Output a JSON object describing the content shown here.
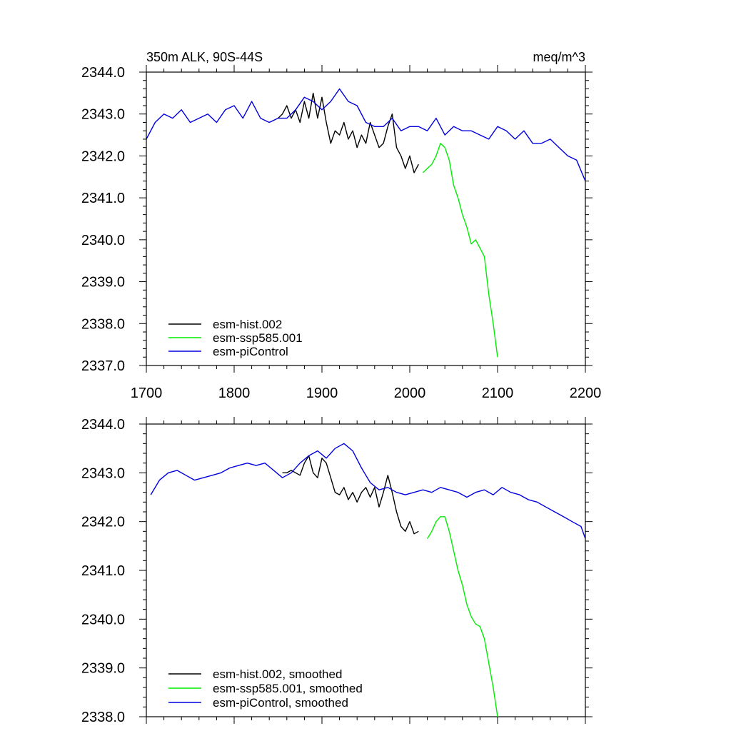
{
  "chart_data": [
    {
      "type": "line",
      "title_left": "350m ALK, 90S-44S",
      "title_right": "meq/m^3",
      "xlim": [
        1700,
        2200
      ],
      "ylim": [
        2337.0,
        2344.0
      ],
      "x_ticks": [
        1700,
        1800,
        1900,
        2000,
        2100,
        2200
      ],
      "x_tick_labels": [
        "1700",
        "1800",
        "1900",
        "2000",
        "2100",
        "2200"
      ],
      "y_ticks": [
        2337.0,
        2338.0,
        2339.0,
        2340.0,
        2341.0,
        2342.0,
        2343.0,
        2344.0
      ],
      "y_tick_labels": [
        "2337.0",
        "2338.0",
        "2339.0",
        "2340.0",
        "2341.0",
        "2342.0",
        "2343.0",
        "2344.0"
      ],
      "legend_position": "bottom-left",
      "series": [
        {
          "name": "esm-hist.002",
          "color": "#000000",
          "x": [
            1850,
            1855,
            1860,
            1865,
            1870,
            1875,
            1880,
            1885,
            1890,
            1895,
            1900,
            1905,
            1910,
            1915,
            1920,
            1925,
            1930,
            1935,
            1940,
            1945,
            1950,
            1955,
            1960,
            1965,
            1970,
            1975,
            1980,
            1985,
            1990,
            1995,
            2000,
            2005,
            2010
          ],
          "y": [
            2342.9,
            2343.0,
            2343.2,
            2342.9,
            2343.1,
            2342.8,
            2343.3,
            2342.9,
            2343.5,
            2342.9,
            2343.4,
            2342.8,
            2342.3,
            2342.6,
            2342.5,
            2342.8,
            2342.4,
            2342.6,
            2342.2,
            2342.5,
            2342.3,
            2342.8,
            2342.5,
            2342.2,
            2342.3,
            2342.7,
            2343.0,
            2342.2,
            2342.0,
            2341.7,
            2342.0,
            2341.6,
            2341.8
          ]
        },
        {
          "name": "esm-ssp585.001",
          "color": "#00ee00",
          "x": [
            2015,
            2020,
            2025,
            2030,
            2035,
            2040,
            2045,
            2050,
            2055,
            2060,
            2065,
            2070,
            2075,
            2080,
            2085,
            2090,
            2095,
            2100
          ],
          "y": [
            2341.6,
            2341.7,
            2341.8,
            2342.0,
            2342.3,
            2342.2,
            2341.9,
            2341.3,
            2341.0,
            2340.6,
            2340.3,
            2339.9,
            2340.0,
            2339.8,
            2339.6,
            2338.7,
            2338.0,
            2337.2
          ]
        },
        {
          "name": "esm-piControl",
          "color": "#0000dd",
          "x": [
            1700,
            1710,
            1720,
            1730,
            1740,
            1750,
            1760,
            1770,
            1780,
            1790,
            1800,
            1810,
            1820,
            1830,
            1840,
            1850,
            1860,
            1870,
            1880,
            1890,
            1900,
            1910,
            1920,
            1930,
            1940,
            1950,
            1960,
            1970,
            1980,
            1990,
            2000,
            2010,
            2020,
            2030,
            2040,
            2050,
            2060,
            2070,
            2080,
            2090,
            2100,
            2110,
            2120,
            2130,
            2140,
            2150,
            2160,
            2170,
            2180,
            2190,
            2200
          ],
          "y": [
            2342.4,
            2342.8,
            2343.0,
            2342.9,
            2343.1,
            2342.8,
            2342.9,
            2343.0,
            2342.8,
            2343.1,
            2343.2,
            2342.9,
            2343.3,
            2342.9,
            2342.8,
            2342.9,
            2342.9,
            2343.1,
            2343.4,
            2343.3,
            2343.1,
            2343.3,
            2343.6,
            2343.3,
            2343.2,
            2342.8,
            2342.7,
            2342.7,
            2342.9,
            2342.6,
            2342.7,
            2342.7,
            2342.6,
            2342.9,
            2342.5,
            2342.7,
            2342.6,
            2342.6,
            2342.5,
            2342.4,
            2342.7,
            2342.6,
            2342.4,
            2342.6,
            2342.3,
            2342.3,
            2342.4,
            2342.2,
            2342.0,
            2341.9,
            2341.4
          ]
        }
      ]
    },
    {
      "type": "line",
      "xlim": [
        1700,
        2200
      ],
      "ylim": [
        2338.0,
        2344.0
      ],
      "x_ticks": [
        1700,
        1800,
        1900,
        2000,
        2100,
        2200
      ],
      "y_ticks": [
        2338.0,
        2339.0,
        2340.0,
        2341.0,
        2342.0,
        2343.0,
        2344.0
      ],
      "y_tick_labels": [
        "2338.0",
        "2339.0",
        "2340.0",
        "2341.0",
        "2342.0",
        "2343.0",
        "2344.0"
      ],
      "legend_position": "bottom-left",
      "series": [
        {
          "name": "esm-hist.002, smoothed",
          "color": "#000000",
          "x": [
            1855,
            1860,
            1865,
            1870,
            1875,
            1880,
            1885,
            1890,
            1895,
            1900,
            1905,
            1910,
            1915,
            1920,
            1925,
            1930,
            1935,
            1940,
            1945,
            1950,
            1955,
            1960,
            1965,
            1970,
            1975,
            1980,
            1985,
            1990,
            1995,
            2000,
            2005,
            2010
          ],
          "y": [
            2343.0,
            2343.0,
            2343.05,
            2343.0,
            2342.95,
            2343.2,
            2343.35,
            2343.0,
            2342.9,
            2343.3,
            2343.2,
            2342.9,
            2342.6,
            2342.55,
            2342.7,
            2342.45,
            2342.6,
            2342.4,
            2342.6,
            2342.7,
            2342.5,
            2342.7,
            2342.3,
            2342.6,
            2342.95,
            2342.6,
            2342.2,
            2341.9,
            2341.8,
            2342.0,
            2341.75,
            2341.8
          ]
        },
        {
          "name": "esm-ssp585.001, smoothed",
          "color": "#00ee00",
          "x": [
            2020,
            2025,
            2030,
            2035,
            2040,
            2045,
            2050,
            2055,
            2060,
            2065,
            2070,
            2075,
            2080,
            2085,
            2090,
            2095,
            2100
          ],
          "y": [
            2341.65,
            2341.8,
            2342.0,
            2342.1,
            2342.1,
            2341.8,
            2341.4,
            2341.0,
            2340.7,
            2340.3,
            2340.05,
            2339.9,
            2339.85,
            2339.6,
            2339.1,
            2338.6,
            2338.0
          ]
        },
        {
          "name": "esm-piControl, smoothed",
          "color": "#0000dd",
          "x": [
            1705,
            1715,
            1725,
            1735,
            1745,
            1755,
            1765,
            1775,
            1785,
            1795,
            1805,
            1815,
            1825,
            1835,
            1845,
            1855,
            1865,
            1875,
            1885,
            1895,
            1905,
            1915,
            1925,
            1935,
            1945,
            1955,
            1965,
            1975,
            1985,
            1995,
            2005,
            2015,
            2025,
            2035,
            2045,
            2055,
            2065,
            2075,
            2085,
            2095,
            2105,
            2115,
            2125,
            2135,
            2145,
            2155,
            2165,
            2175,
            2185,
            2195,
            2200
          ],
          "y": [
            2342.55,
            2342.85,
            2343.0,
            2343.05,
            2342.95,
            2342.85,
            2342.9,
            2342.95,
            2343.0,
            2343.1,
            2343.15,
            2343.2,
            2343.15,
            2343.2,
            2343.05,
            2342.9,
            2343.0,
            2343.2,
            2343.35,
            2343.45,
            2343.3,
            2343.5,
            2343.6,
            2343.45,
            2343.1,
            2342.8,
            2342.65,
            2342.7,
            2342.6,
            2342.55,
            2342.6,
            2342.65,
            2342.6,
            2342.7,
            2342.65,
            2342.6,
            2342.5,
            2342.6,
            2342.65,
            2342.55,
            2342.7,
            2342.6,
            2342.55,
            2342.45,
            2342.4,
            2342.3,
            2342.2,
            2342.1,
            2342.0,
            2341.9,
            2341.65
          ]
        }
      ]
    }
  ]
}
